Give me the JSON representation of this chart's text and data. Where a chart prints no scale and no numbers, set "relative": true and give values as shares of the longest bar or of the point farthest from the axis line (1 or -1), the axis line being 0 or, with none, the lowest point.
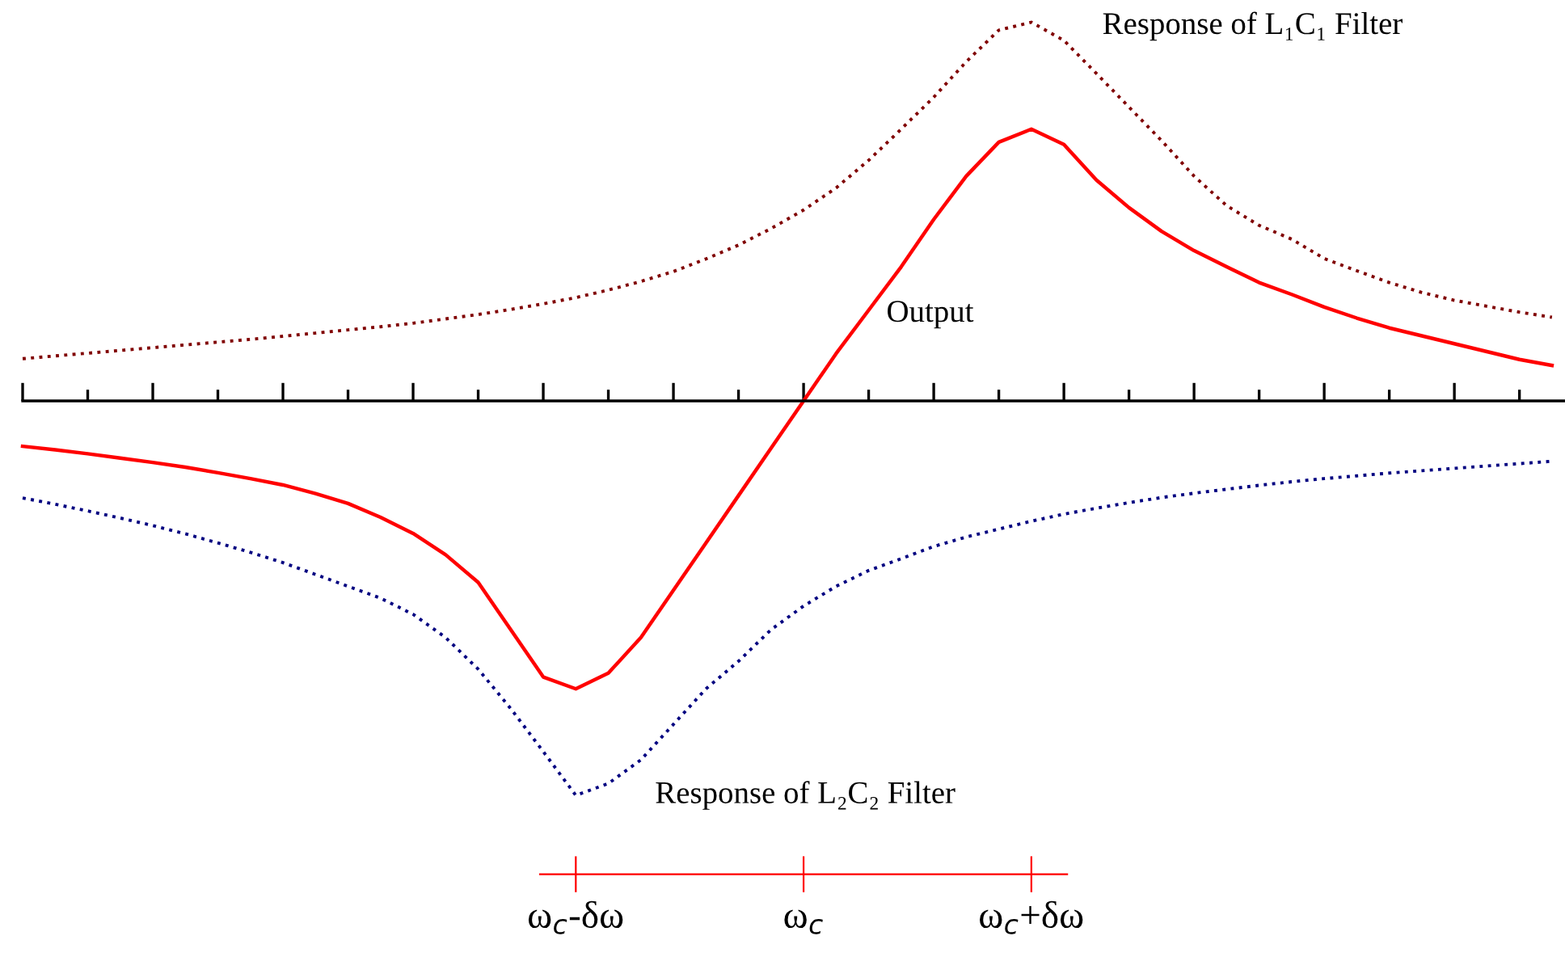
{
  "chart_data": {
    "type": "line",
    "relative": true,
    "categories": [
      null,
      null,
      null,
      null,
      null,
      null,
      null,
      null,
      null,
      null,
      null,
      null,
      null,
      null,
      null,
      null,
      null,
      "ω$_{c}$-δω",
      null,
      null,
      null,
      null,
      null,
      null,
      "ω$_{c}$",
      null,
      null,
      null,
      null,
      null,
      null,
      "ω$_{c}$+δω",
      null,
      null,
      null,
      null,
      null,
      null,
      null,
      null,
      null,
      null,
      null,
      null,
      null,
      null,
      null,
      null
    ],
    "series": [
      {
        "name": "Response of L₁C₁ Filter",
        "color": "#800000",
        "line_style": "dotted",
        "values": [
          0.107,
          0.114,
          0.121,
          0.128,
          0.135,
          0.142,
          0.149,
          0.156,
          0.164,
          0.172,
          0.18,
          0.188,
          0.197,
          0.208,
          0.219,
          0.232,
          0.246,
          0.262,
          0.281,
          0.303,
          0.328,
          0.36,
          0.395,
          0.437,
          0.484,
          0.54,
          0.61,
          0.689,
          0.77,
          0.86,
          0.94,
          0.96,
          0.914,
          0.83,
          0.745,
          0.66,
          0.57,
          0.495,
          0.445,
          0.41,
          0.361,
          0.33,
          0.3,
          0.275,
          0.255,
          0.24,
          0.225,
          0.212
        ]
      },
      {
        "name": "Output",
        "color": "#ff0000",
        "line_style": "solid",
        "values": [
          -0.115,
          -0.124,
          -0.134,
          -0.145,
          -0.156,
          -0.168,
          -0.182,
          -0.197,
          -0.213,
          -0.235,
          -0.26,
          -0.295,
          -0.336,
          -0.39,
          -0.46,
          -0.58,
          -0.7,
          -0.73,
          -0.69,
          -0.6,
          -0.48,
          -0.36,
          -0.24,
          -0.12,
          0,
          0.12,
          0.23,
          0.34,
          0.46,
          0.57,
          0.656,
          0.689,
          0.65,
          0.56,
          0.49,
          0.43,
          0.381,
          0.34,
          0.3,
          0.27,
          0.238,
          0.21,
          0.185,
          0.165,
          0.145,
          0.125,
          0.105,
          0.09
        ]
      },
      {
        "name": "Response of L₂C₂ Filter",
        "color": "#000080",
        "line_style": "dotted",
        "values": [
          -0.246,
          -0.262,
          -0.279,
          -0.297,
          -0.316,
          -0.337,
          -0.36,
          -0.384,
          -0.41,
          -0.44,
          -0.47,
          -0.5,
          -0.541,
          -0.6,
          -0.68,
          -0.78,
          -0.889,
          -1,
          -0.97,
          -0.91,
          -0.82,
          -0.73,
          -0.66,
          -0.58,
          -0.52,
          -0.47,
          -0.43,
          -0.4,
          -0.369,
          -0.345,
          -0.325,
          -0.305,
          -0.287,
          -0.272,
          -0.258,
          -0.245,
          -0.234,
          -0.224,
          -0.214,
          -0.205,
          -0.197,
          -0.19,
          -0.183,
          -0.177,
          -0.171,
          -0.165,
          -0.159,
          -0.153
        ]
      }
    ]
  }
}
